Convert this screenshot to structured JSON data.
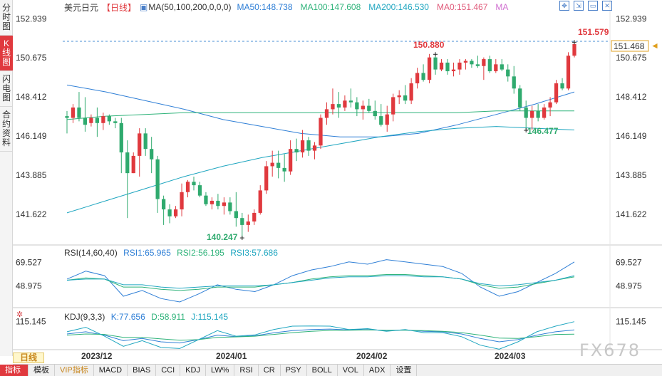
{
  "left_tabs": [
    {
      "label": "分时图"
    },
    {
      "label": "K线图"
    },
    {
      "label": "闪电图"
    },
    {
      "label": "合约资料"
    }
  ],
  "header": {
    "symbol": "美元日元",
    "period_tag": "【日线】",
    "ma_label": "MA(50,100,200,0,0,0)",
    "ma50": "MA50:148.738",
    "ma100": "MA100:147.608",
    "ma200": "MA200:146.530",
    "ma0a": "MA0:151.467",
    "ma0b": "MA"
  },
  "window_controls": [
    "crosshair-expand",
    "shrink",
    "restore",
    "close"
  ],
  "price_axis": [
    "152.939",
    "150.675",
    "148.412",
    "146.149",
    "143.885",
    "141.622"
  ],
  "price_tags": {
    "current": "151.468",
    "high": "151.579",
    "peak": "150.880",
    "low": "140.247",
    "recent_low": "146.477"
  },
  "rsi": {
    "label": "RSI(14,60,40)",
    "rsi1": "RSI1:65.965",
    "rsi2": "RSI2:56.195",
    "rsi3": "RSI3:57.686",
    "axis": [
      "69.527",
      "48.975"
    ]
  },
  "kdj": {
    "label": "KDJ(9,3,3)",
    "k": "K:77.656",
    "d": "D:58.911",
    "j": "J:115.145",
    "axis": [
      "115.145"
    ]
  },
  "dates": [
    "2023/12",
    "2024/01",
    "2024/02",
    "2024/03"
  ],
  "period_button": "日线",
  "bottom_tabs": [
    "指标",
    "模板",
    "VIP指标",
    "MACD",
    "BIAS",
    "CCI",
    "KDJ",
    "LW%",
    "RSI",
    "CR",
    "PSY",
    "BOLL",
    "VOL",
    "ADX",
    "设置"
  ],
  "watermark": "FX678",
  "colors": {
    "up": "#e0393e",
    "down": "#2faa6e",
    "ma50": "#2f7fd6",
    "ma100": "#2fb37a",
    "ma200": "#1fa6c0",
    "highlight": "#e0393e"
  },
  "chart_data": {
    "type": "candlestick",
    "ylim": [
      139.8,
      153.2
    ],
    "candles": [
      [
        147.3,
        147.6,
        146.3,
        147.2
      ],
      [
        147.2,
        148.0,
        146.9,
        147.8
      ],
      [
        147.8,
        148.7,
        147.0,
        147.2
      ],
      [
        147.2,
        148.4,
        146.4,
        146.8
      ],
      [
        146.9,
        147.4,
        146.7,
        147.2
      ],
      [
        147.2,
        147.8,
        146.1,
        146.9
      ],
      [
        146.9,
        147.5,
        146.5,
        147.3
      ],
      [
        147.3,
        147.4,
        146.8,
        147.0
      ],
      [
        147.0,
        147.2,
        146.6,
        146.9
      ],
      [
        146.9,
        147.2,
        144.0,
        145.2
      ],
      [
        145.2,
        145.9,
        141.4,
        144.0
      ],
      [
        144.0,
        145.2,
        144.0,
        145.0
      ],
      [
        145.0,
        146.6,
        143.8,
        146.3
      ],
      [
        146.3,
        146.6,
        145.0,
        145.4
      ],
      [
        145.4,
        146.1,
        144.0,
        144.8
      ],
      [
        144.8,
        145.0,
        141.7,
        142.5
      ],
      [
        142.5,
        142.7,
        141.0,
        141.9
      ],
      [
        141.9,
        142.2,
        141.1,
        141.5
      ],
      [
        141.5,
        142.1,
        141.4,
        141.9
      ],
      [
        141.9,
        143.4,
        141.5,
        142.9
      ],
      [
        142.9,
        143.6,
        142.6,
        143.5
      ],
      [
        143.5,
        143.8,
        143.0,
        143.3
      ],
      [
        143.3,
        143.5,
        142.6,
        142.7
      ],
      [
        142.7,
        142.9,
        142.1,
        142.2
      ],
      [
        142.2,
        142.6,
        141.9,
        142.4
      ],
      [
        142.4,
        142.8,
        141.9,
        142.1
      ],
      [
        142.1,
        142.6,
        141.6,
        142.3
      ],
      [
        142.3,
        142.6,
        141.6,
        141.8
      ],
      [
        141.8,
        142.9,
        140.9,
        141.4
      ],
      [
        141.4,
        141.7,
        140.25,
        141.0
      ],
      [
        141.0,
        141.6,
        140.6,
        141.2
      ],
      [
        141.2,
        141.9,
        141.0,
        141.7
      ],
      [
        141.7,
        143.3,
        141.6,
        143.0
      ],
      [
        143.0,
        144.7,
        142.8,
        144.4
      ],
      [
        144.4,
        145.3,
        143.8,
        144.6
      ],
      [
        144.6,
        145.3,
        143.7,
        144.3
      ],
      [
        144.3,
        145.1,
        143.5,
        144.1
      ],
      [
        144.1,
        145.9,
        143.9,
        145.4
      ],
      [
        145.4,
        146.0,
        144.7,
        145.2
      ],
      [
        145.2,
        146.5,
        144.9,
        145.9
      ],
      [
        145.9,
        146.1,
        145.0,
        145.3
      ],
      [
        145.3,
        145.8,
        144.8,
        145.6
      ],
      [
        145.6,
        147.4,
        145.4,
        147.2
      ],
      [
        147.2,
        148.1,
        146.8,
        147.7
      ],
      [
        147.7,
        148.9,
        147.4,
        148.0
      ],
      [
        148.0,
        148.7,
        147.2,
        147.8
      ],
      [
        147.8,
        148.5,
        147.6,
        148.2
      ],
      [
        148.2,
        148.9,
        147.8,
        148.1
      ],
      [
        148.1,
        148.4,
        147.3,
        147.7
      ],
      [
        147.7,
        148.2,
        147.1,
        147.9
      ],
      [
        147.9,
        148.3,
        147.5,
        147.6
      ],
      [
        147.6,
        148.2,
        147.1,
        147.3
      ],
      [
        147.3,
        148.0,
        146.7,
        146.8
      ],
      [
        146.8,
        147.9,
        146.4,
        147.4
      ],
      [
        147.4,
        148.6,
        147.0,
        148.4
      ],
      [
        148.4,
        148.8,
        148.0,
        148.5
      ],
      [
        148.5,
        149.1,
        148.0,
        148.2
      ],
      [
        148.2,
        149.5,
        148.0,
        149.2
      ],
      [
        149.2,
        150.1,
        148.9,
        149.8
      ],
      [
        149.8,
        150.3,
        149.3,
        149.4
      ],
      [
        149.4,
        150.9,
        149.2,
        150.7
      ],
      [
        150.7,
        150.88,
        149.7,
        150.0
      ],
      [
        150.0,
        150.6,
        149.9,
        150.4
      ],
      [
        150.4,
        150.6,
        149.7,
        149.9
      ],
      [
        149.9,
        150.4,
        149.6,
        150.0
      ],
      [
        150.0,
        150.6,
        149.7,
        150.4
      ],
      [
        150.4,
        150.6,
        150.0,
        150.5
      ],
      [
        150.5,
        150.6,
        150.1,
        150.3
      ],
      [
        150.3,
        150.8,
        150.1,
        150.2
      ],
      [
        150.2,
        150.7,
        149.4,
        150.6
      ],
      [
        150.6,
        150.8,
        149.8,
        149.9
      ],
      [
        149.9,
        150.6,
        149.8,
        150.3
      ],
      [
        150.3,
        150.6,
        149.9,
        150.0
      ],
      [
        150.0,
        150.3,
        149.3,
        149.6
      ],
      [
        149.6,
        150.2,
        148.6,
        148.9
      ],
      [
        148.9,
        149.1,
        147.6,
        147.8
      ],
      [
        147.8,
        148.2,
        146.48,
        147.2
      ],
      [
        147.2,
        147.9,
        146.5,
        147.6
      ],
      [
        147.6,
        148.0,
        147.0,
        147.2
      ],
      [
        147.2,
        148.0,
        147.1,
        147.8
      ],
      [
        147.8,
        148.4,
        147.3,
        148.1
      ],
      [
        148.1,
        149.4,
        148.0,
        149.2
      ],
      [
        149.2,
        149.5,
        148.8,
        148.9
      ],
      [
        148.9,
        151.0,
        148.8,
        150.8
      ],
      [
        150.8,
        151.58,
        150.7,
        151.47
      ]
    ],
    "ma50": [
      149.1,
      148.7,
      148.2,
      147.7,
      147.1,
      146.7,
      146.3,
      146.1,
      146.1,
      146.3,
      146.8,
      147.4,
      148.0,
      148.7
    ],
    "ma100": [
      147.1,
      147.3,
      147.4,
      147.5,
      147.5,
      147.5,
      147.5,
      147.5,
      147.5,
      147.5,
      147.5,
      147.6,
      147.6,
      147.6
    ],
    "ma200": [
      141.7,
      142.4,
      143.1,
      143.8,
      144.4,
      144.9,
      145.3,
      145.7,
      146.1,
      146.4,
      146.6,
      146.7,
      146.6,
      146.5
    ]
  }
}
